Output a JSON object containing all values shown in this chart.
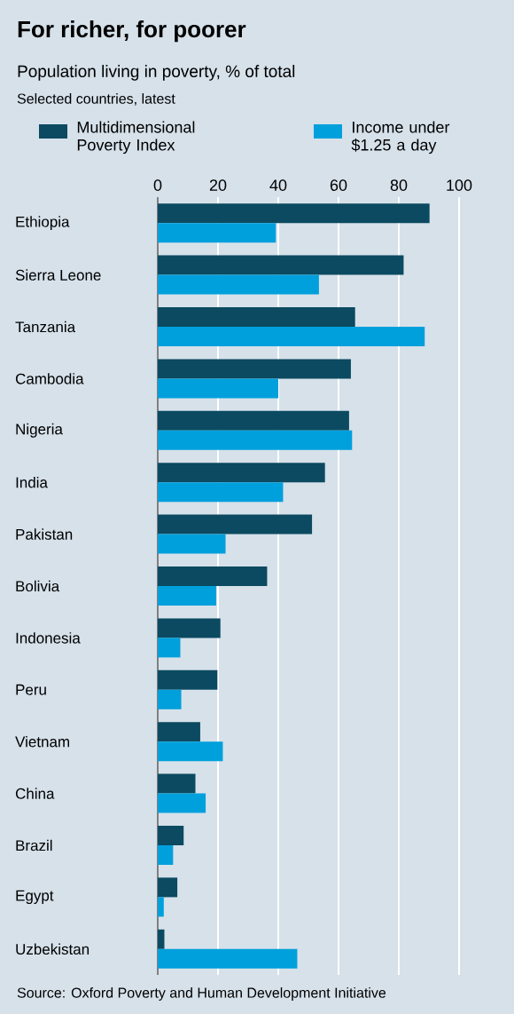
{
  "chart_data": {
    "type": "bar",
    "orientation": "horizontal",
    "title": "For richer, for poorer",
    "subtitle": "Population living in poverty, % of total",
    "annotations": [
      "Selected countries, latest",
      "Source: Oxford Poverty and Human Development Initiative"
    ],
    "categories": [
      "Ethiopia",
      "Sierra Leone",
      "Tanzania",
      "Cambodia",
      "Nigeria",
      "India",
      "Pakistan",
      "Bolivia",
      "Indonesia",
      "Peru",
      "Vietnam",
      "China",
      "Brazil",
      "Egypt",
      "Uzbekistan"
    ],
    "series": [
      {
        "name": "Multidimensional Poverty Index",
        "color": "#0b4a60",
        "values": [
          90.2,
          81.6,
          65.5,
          64.1,
          63.5,
          55.5,
          51.2,
          36.3,
          20.8,
          19.8,
          14.1,
          12.5,
          8.6,
          6.5,
          2.2
        ]
      },
      {
        "name": "Income under $1.25 a day",
        "color": "#00a0dc",
        "values": [
          39.2,
          53.5,
          88.6,
          40.0,
          64.5,
          41.6,
          22.5,
          19.4,
          7.5,
          7.8,
          21.6,
          15.9,
          5.1,
          2.0,
          46.3
        ]
      }
    ],
    "xlim": [
      0,
      100
    ],
    "xticks": [
      0,
      20,
      40,
      60,
      80,
      100
    ],
    "grid": "x",
    "legend": "top left"
  }
}
